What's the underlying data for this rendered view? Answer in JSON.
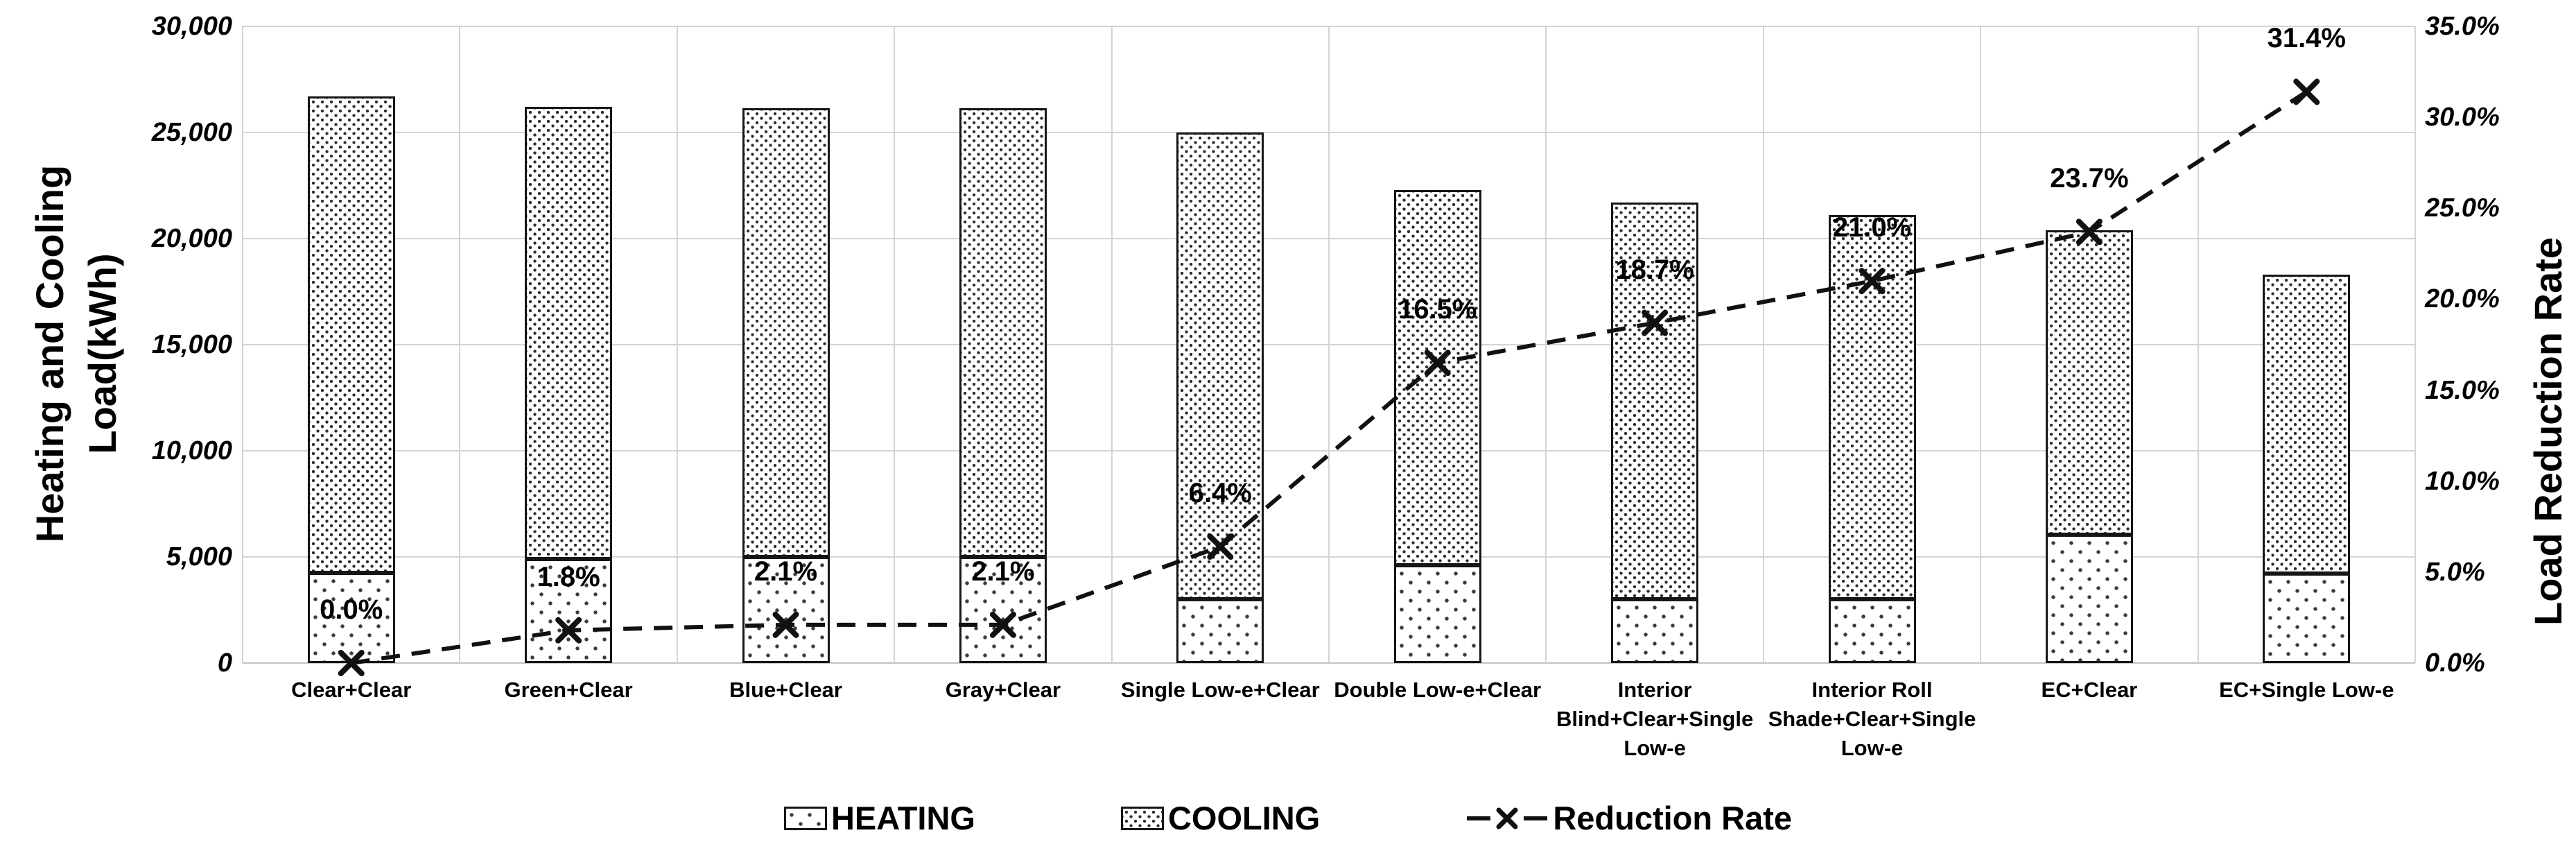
{
  "colors": {
    "background": "#ffffff",
    "text": "#000000",
    "gridline": "#d4d4d4",
    "axis_line": "#c3c3c3",
    "bar_border": "#161616",
    "pattern_dot": "#3c3c3c",
    "line_series": "#111111"
  },
  "chart_data": {
    "type": "bar-line-combo",
    "title": "",
    "categories": [
      "Clear+Clear",
      "Green+Clear",
      "Blue+Clear",
      "Gray+Clear",
      "Single Low-e+Clear",
      "Double Low-e+Clear",
      "Interior\nBlind+Clear+Single\nLow-e",
      "Interior Roll\nShade+Clear+Single\nLow-e",
      "EC+Clear",
      "EC+Single Low-e"
    ],
    "series": [
      {
        "name": "HEATING",
        "type": "bar",
        "stack": "load",
        "pattern": "sparse-dots",
        "values": [
          4250,
          4900,
          5000,
          5000,
          3000,
          4600,
          3000,
          3000,
          6050,
          4200
        ]
      },
      {
        "name": "COOLING",
        "type": "bar",
        "stack": "load",
        "pattern": "dense-dots",
        "values": [
          22450,
          21300,
          21150,
          21150,
          22000,
          17700,
          18700,
          18100,
          14350,
          14100
        ]
      },
      {
        "name": "Reduction Rate",
        "type": "line",
        "axis": "right",
        "marker": "x",
        "dash": true,
        "values": [
          0.0,
          1.8,
          2.1,
          2.1,
          6.4,
          16.5,
          18.7,
          21.0,
          23.7,
          31.4
        ],
        "point_labels": [
          "0.0%",
          "1.8%",
          "2.1%",
          "2.1%",
          "6.4%",
          "16.5%",
          "18.7%",
          "21.0%",
          "23.7%",
          "31.4%"
        ]
      }
    ],
    "left_axis": {
      "title": "Heating and Cooling Load(kWh)",
      "title_lines": [
        "Heating and Cooling",
        "Load(kWh)"
      ],
      "min": 0,
      "max": 30000,
      "step": 5000,
      "tick_labels": [
        "30,000",
        "25,000",
        "20,000",
        "15,000",
        "10,000",
        "5,000",
        "0"
      ]
    },
    "right_axis": {
      "title": "Load Reduction Rate",
      "min": 0,
      "max": 35,
      "step": 5,
      "tick_labels": [
        "35.0%",
        "30.0%",
        "25.0%",
        "20.0%",
        "15.0%",
        "10.0%",
        "5.0%",
        "0.0%"
      ]
    },
    "legend": [
      {
        "label": "HEATING",
        "swatch": "sparse-dots"
      },
      {
        "label": "COOLING",
        "swatch": "dense-dots"
      },
      {
        "label": "Reduction Rate",
        "swatch": "dash-x"
      }
    ],
    "grid": "horizontal-and-vertical",
    "legend_position": "bottom"
  }
}
